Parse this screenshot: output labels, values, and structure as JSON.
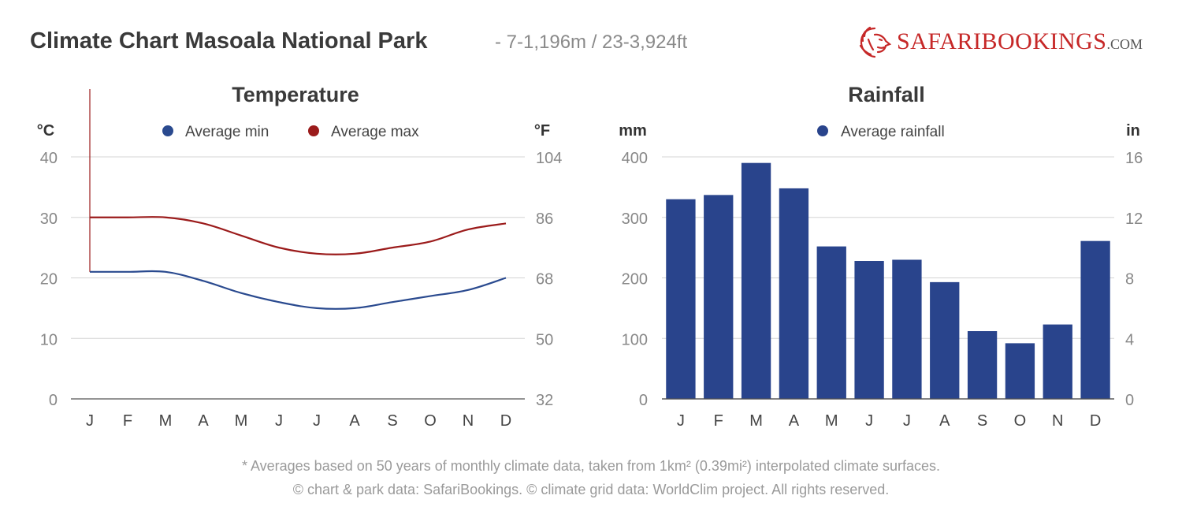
{
  "header": {
    "title": "Climate Chart Masoala National Park",
    "subtitle": "- 7-1,196m / 23-3,924ft",
    "logo": {
      "brand_part1": "Safari",
      "brand_part2": "Bookings",
      "domain": ".com",
      "icon": "lion-head-icon"
    }
  },
  "footer": {
    "line1": "* Averages based on 50 years of monthly climate data, taken from 1km² (0.39mi²) interpolated climate surfaces.",
    "line2": "© chart & park data: SafariBookings. © climate grid data: WorldClim project. All rights reserved."
  },
  "chart_data": [
    {
      "type": "line",
      "title": "Temperature",
      "ylabel": "°C",
      "ylabel_right": "°F",
      "ylim": [
        0,
        40
      ],
      "yticks": [
        "0",
        "10",
        "20",
        "30",
        "40"
      ],
      "yticks_right": [
        "32",
        "50",
        "68",
        "86",
        "104"
      ],
      "categories": [
        "J",
        "F",
        "M",
        "A",
        "M",
        "J",
        "J",
        "A",
        "S",
        "O",
        "N",
        "D"
      ],
      "legend_position": "top",
      "grid": true,
      "series": [
        {
          "name": "Average min",
          "color": "#2a4a8f",
          "values": [
            21,
            21,
            21,
            19.5,
            17.5,
            16,
            15,
            15,
            16,
            17,
            18,
            20
          ]
        },
        {
          "name": "Average max",
          "color": "#9b1b1b",
          "values": [
            30,
            30,
            30,
            29,
            27,
            25,
            24,
            24,
            25,
            26,
            28,
            29
          ]
        }
      ]
    },
    {
      "type": "bar",
      "title": "Rainfall",
      "ylabel": "mm",
      "ylabel_right": "in",
      "ylim": [
        0,
        400
      ],
      "yticks": [
        "0",
        "100",
        "200",
        "300",
        "400"
      ],
      "yticks_right": [
        "0",
        "4",
        "8",
        "12",
        "16"
      ],
      "categories": [
        "J",
        "F",
        "M",
        "A",
        "M",
        "J",
        "J",
        "A",
        "S",
        "O",
        "N",
        "D"
      ],
      "legend_position": "top",
      "grid": true,
      "series": [
        {
          "name": "Average rainfall",
          "color": "#29448c",
          "values": [
            330,
            337,
            390,
            348,
            252,
            228,
            230,
            193,
            112,
            92,
            123,
            261
          ]
        }
      ]
    }
  ]
}
